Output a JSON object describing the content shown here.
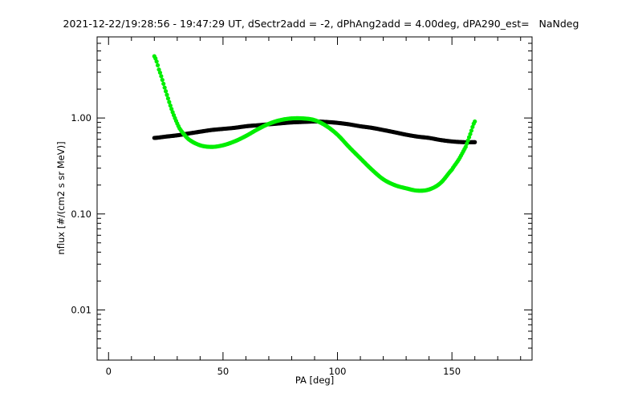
{
  "chart_data": {
    "type": "scatter",
    "title": "2021-12-22/19:28:56 - 19:47:29 UT, dSectr2add = -2, dPhAng2add = 4.00deg, dPA290_est=   NaNdeg",
    "xlabel": "PA [deg]",
    "ylabel": "nflux [#/(cm2 s sr MeV)]",
    "xlim": [
      -5,
      185
    ],
    "ylim": [
      0.003,
      7
    ],
    "yscale": "log",
    "x_ticks": [
      0,
      50,
      100,
      150
    ],
    "x_tick_labels": [
      "0",
      "50",
      "100",
      "150"
    ],
    "y_ticks": [
      0.01,
      0.1,
      1.0
    ],
    "y_tick_labels": [
      "0.01",
      "0.10",
      "1.00"
    ],
    "grid": false,
    "legend": "none",
    "series": [
      {
        "color": "#000000",
        "x": [
          20,
          25,
          30,
          35,
          40,
          45,
          50,
          55,
          60,
          65,
          70,
          75,
          80,
          85,
          90,
          95,
          100,
          105,
          110,
          115,
          120,
          125,
          130,
          135,
          140,
          145,
          150,
          155,
          160
        ],
        "y": [
          0.62,
          0.64,
          0.66,
          0.69,
          0.72,
          0.75,
          0.77,
          0.79,
          0.82,
          0.84,
          0.86,
          0.88,
          0.9,
          0.91,
          0.92,
          0.91,
          0.89,
          0.86,
          0.82,
          0.79,
          0.75,
          0.71,
          0.67,
          0.64,
          0.62,
          0.59,
          0.57,
          0.56,
          0.56
        ]
      },
      {
        "color": "#00ee00",
        "x": [
          20,
          22,
          25,
          28,
          31,
          35,
          40,
          45,
          50,
          55,
          60,
          65,
          70,
          75,
          80,
          85,
          90,
          95,
          100,
          105,
          110,
          115,
          120,
          125,
          130,
          135,
          140,
          145,
          150,
          153,
          156,
          158,
          160
        ],
        "y": [
          4.4,
          3.2,
          1.9,
          1.15,
          0.78,
          0.6,
          0.52,
          0.5,
          0.52,
          0.57,
          0.65,
          0.76,
          0.87,
          0.95,
          0.99,
          0.99,
          0.95,
          0.83,
          0.67,
          0.5,
          0.38,
          0.29,
          0.23,
          0.2,
          0.185,
          0.175,
          0.18,
          0.21,
          0.29,
          0.37,
          0.5,
          0.68,
          0.92
        ]
      }
    ]
  }
}
